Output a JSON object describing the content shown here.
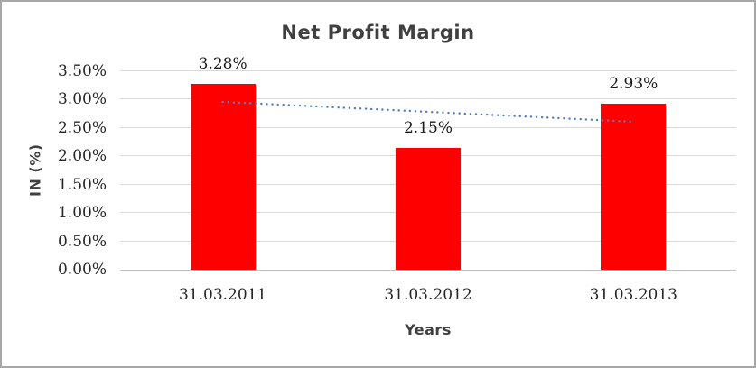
{
  "window": {
    "background_color": "#ffffff",
    "border_color": "#a6a6a6"
  },
  "chart_data": {
    "type": "bar",
    "title": "Net Profit Margin",
    "xlabel": "Years",
    "ylabel": "IN (%)",
    "categories": [
      "31.03.2011",
      "31.03.2012",
      "31.03.2013"
    ],
    "values": [
      3.28,
      2.15,
      2.93
    ],
    "data_labels": [
      "3.28%",
      "2.15%",
      "2.93%"
    ],
    "y_ticks": [
      "0.00%",
      "0.50%",
      "1.00%",
      "1.50%",
      "2.00%",
      "2.50%",
      "3.00%",
      "3.50%"
    ],
    "ylim": [
      0,
      3.5
    ],
    "y_tick_step": 0.5,
    "grid": true,
    "legend": "none",
    "bar_color": "#ff0000",
    "trendline": {
      "type": "linear",
      "style": "dotted",
      "color": "#4f81bd",
      "start_value": 2.96,
      "end_value": 2.61
    },
    "colors": {
      "title_text": "#404040",
      "axis_title_text": "#404040",
      "tick_label_text": "#262626",
      "data_label_text": "#1a1a1a",
      "gridline": "#d9d9d9"
    }
  }
}
